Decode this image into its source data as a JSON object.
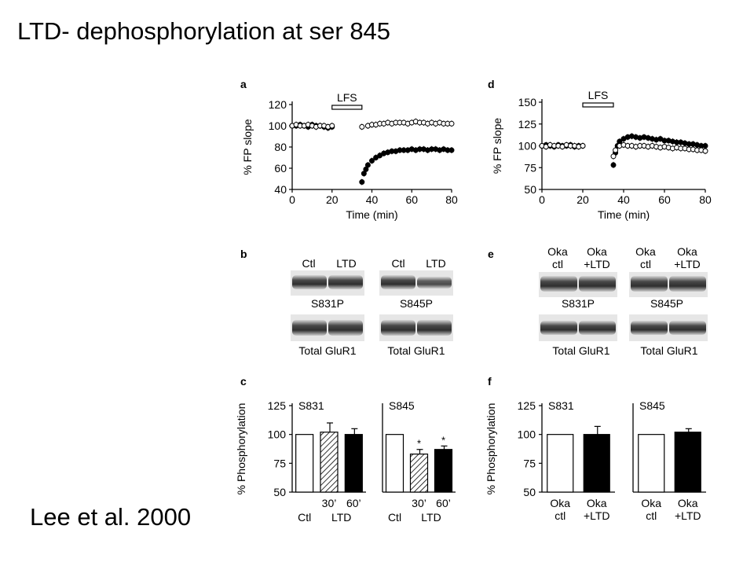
{
  "slide": {
    "title": "LTD- dephosphorylation at ser 845",
    "citation": "Lee et al. 2000"
  },
  "figure": {
    "panel_letters": [
      "a",
      "b",
      "c",
      "d",
      "e",
      "f"
    ],
    "blot_b": {
      "left": {
        "lanes": [
          "Ctl",
          "LTD"
        ],
        "label_top": "S831P",
        "label_bottom": "Total GluR1"
      },
      "right": {
        "lanes": [
          "Ctl",
          "LTD"
        ],
        "label_top": "S845P",
        "label_bottom": "Total GluR1"
      }
    },
    "blot_e": {
      "left": {
        "lanes": [
          [
            "Oka",
            "ctl"
          ],
          [
            "Oka",
            "+LTD"
          ]
        ],
        "label_top": "S831P",
        "label_bottom": "Total GluR1"
      },
      "right": {
        "lanes": [
          [
            "Oka",
            "ctl"
          ],
          [
            "Oka",
            "+LTD"
          ]
        ],
        "label_top": "S845P",
        "label_bottom": "Total GluR1"
      }
    },
    "colors": {
      "filled": "#000000",
      "open": "#ffffff",
      "band": "#3a3a3a"
    }
  },
  "chart_data": [
    {
      "panel": "a",
      "type": "scatter",
      "xlabel": "Time (min)",
      "ylabel": "% FP slope",
      "xlim": [
        0,
        80
      ],
      "ylim": [
        40,
        120
      ],
      "xticks": [
        0,
        20,
        40,
        60,
        80
      ],
      "yticks": [
        40,
        60,
        80,
        100,
        120
      ],
      "annotation": {
        "label": "LFS",
        "x_range": [
          20,
          35
        ]
      },
      "series": [
        {
          "marker": "filled",
          "x": [
            0,
            2,
            4,
            6,
            8,
            10,
            12,
            14,
            16,
            18,
            20,
            35,
            36,
            37,
            38,
            40,
            42,
            44,
            46,
            48,
            50,
            52,
            54,
            56,
            58,
            60,
            62,
            64,
            66,
            68,
            70,
            72,
            74,
            76,
            78,
            80
          ],
          "y": [
            100,
            100,
            101,
            100,
            99,
            101,
            100,
            100,
            99,
            98,
            99,
            47,
            55,
            59,
            63,
            67,
            70,
            72,
            74,
            75,
            76,
            76,
            77,
            77,
            77,
            78,
            77,
            78,
            78,
            77,
            78,
            78,
            77,
            78,
            77,
            77
          ]
        },
        {
          "marker": "open",
          "x": [
            0,
            2,
            4,
            6,
            8,
            10,
            12,
            14,
            16,
            18,
            20,
            35,
            38,
            40,
            42,
            44,
            46,
            48,
            50,
            52,
            54,
            56,
            58,
            60,
            62,
            64,
            66,
            68,
            70,
            72,
            74,
            76,
            78,
            80
          ],
          "y": [
            100,
            101,
            100,
            100,
            101,
            100,
            99,
            100,
            100,
            99,
            100,
            99,
            100,
            101,
            101,
            102,
            102,
            103,
            102,
            103,
            103,
            103,
            102,
            103,
            104,
            103,
            103,
            102,
            103,
            102,
            103,
            102,
            102,
            102
          ]
        }
      ]
    },
    {
      "panel": "d",
      "type": "scatter",
      "xlabel": "Time (min)",
      "ylabel": "% FP slope",
      "xlim": [
        0,
        80
      ],
      "ylim": [
        50,
        150
      ],
      "xticks": [
        0,
        20,
        40,
        60,
        80
      ],
      "yticks": [
        50,
        75,
        100,
        125,
        150
      ],
      "annotation": {
        "label": "LFS",
        "x_range": [
          20,
          35
        ]
      },
      "series": [
        {
          "marker": "filled",
          "x": [
            0,
            2,
            4,
            6,
            8,
            10,
            12,
            14,
            16,
            18,
            20,
            35,
            36,
            37,
            38,
            40,
            42,
            44,
            46,
            48,
            50,
            52,
            54,
            56,
            58,
            60,
            62,
            64,
            66,
            68,
            70,
            72,
            74,
            76,
            78,
            80
          ],
          "y": [
            100,
            101,
            100,
            99,
            101,
            100,
            100,
            101,
            99,
            100,
            100,
            78,
            92,
            100,
            105,
            108,
            110,
            111,
            110,
            109,
            110,
            109,
            108,
            107,
            108,
            106,
            106,
            105,
            104,
            104,
            103,
            102,
            102,
            101,
            100,
            100
          ]
        },
        {
          "marker": "open",
          "x": [
            0,
            2,
            4,
            6,
            8,
            10,
            12,
            14,
            16,
            18,
            20,
            35,
            36,
            38,
            40,
            42,
            44,
            46,
            48,
            50,
            52,
            54,
            56,
            58,
            60,
            62,
            64,
            66,
            68,
            70,
            72,
            74,
            76,
            78,
            80
          ],
          "y": [
            100,
            99,
            101,
            100,
            100,
            99,
            101,
            100,
            100,
            99,
            100,
            88,
            95,
            100,
            101,
            100,
            100,
            99,
            100,
            100,
            99,
            100,
            99,
            98,
            99,
            98,
            97,
            98,
            97,
            97,
            96,
            96,
            95,
            95,
            94
          ]
        }
      ]
    },
    {
      "panel": "c",
      "type": "bar",
      "ylabel": "% Phosphorylation",
      "ylim": [
        50,
        125
      ],
      "yticks": [
        50,
        75,
        100,
        125
      ],
      "groups": [
        {
          "title": "S831",
          "bars": [
            {
              "label": "Ctl",
              "value": 100,
              "err": 0,
              "fill": "open",
              "star": false
            },
            {
              "label": "30’",
              "value": 102,
              "err": 8,
              "fill": "hatched",
              "star": false
            },
            {
              "label": "60’",
              "value": 100,
              "err": 5,
              "fill": "filled",
              "star": false
            }
          ],
          "sublabels": [
            "Ctl",
            "LTD"
          ]
        },
        {
          "title": "S845",
          "bars": [
            {
              "label": "Ctl",
              "value": 100,
              "err": 0,
              "fill": "open",
              "star": false
            },
            {
              "label": "30’",
              "value": 83,
              "err": 4,
              "fill": "hatched",
              "star": true
            },
            {
              "label": "60’",
              "value": 87,
              "err": 3,
              "fill": "filled",
              "star": true
            }
          ],
          "sublabels": [
            "Ctl",
            "LTD"
          ]
        }
      ]
    },
    {
      "panel": "f",
      "type": "bar",
      "ylabel": "% Phosphorylation",
      "ylim": [
        50,
        125
      ],
      "yticks": [
        50,
        75,
        100,
        125
      ],
      "groups": [
        {
          "title": "S831",
          "bars": [
            {
              "label": [
                "Oka",
                "ctl"
              ],
              "value": 100,
              "err": 0,
              "fill": "open"
            },
            {
              "label": [
                "Oka",
                "+LTD"
              ],
              "value": 100,
              "err": 7,
              "fill": "filled"
            }
          ]
        },
        {
          "title": "S845",
          "bars": [
            {
              "label": [
                "Oka",
                "ctl"
              ],
              "value": 100,
              "err": 0,
              "fill": "open"
            },
            {
              "label": [
                "Oka",
                "+LTD"
              ],
              "value": 102,
              "err": 3,
              "fill": "filled"
            }
          ]
        }
      ]
    }
  ]
}
